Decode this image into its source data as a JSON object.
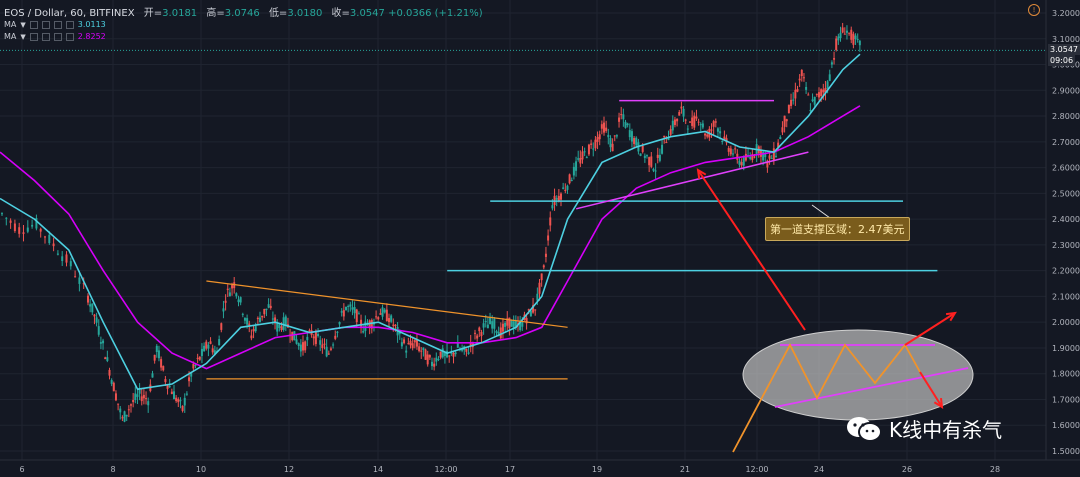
{
  "header": {
    "symbol": "EOS / Dollar, 60, BITFINEX",
    "open_label": "开=",
    "open": "3.0181",
    "high_label": "高=",
    "high": "3.0746",
    "low_label": "低=",
    "low": "3.0180",
    "close_label": "收=",
    "close": "3.0547",
    "change": "+0.0366 (+1.21%)",
    "ma1_label": "MA",
    "ma1_value": "3.0113",
    "ma2_label": "MA",
    "ma2_value": "2.8252"
  },
  "colors": {
    "background": "#141823",
    "up": "#26a69a",
    "down": "#ef5350",
    "ma_fast": "#4dd0e1",
    "ma_slow": "#d500f9",
    "triangle": "#f0932b",
    "support": "#4dd0e1",
    "channel": "#e040fb",
    "arrow": "#ff2020"
  },
  "annotation": {
    "text": "第一道支撑区域：2.47美元"
  },
  "watermark": {
    "text": "K线中有杀气"
  },
  "price_tags": {
    "current": "3.0547",
    "time": "09:06"
  },
  "chart_data": {
    "type": "line",
    "y_axis": {
      "ticks": [
        "3.2000",
        "3.1000",
        "3.0000",
        "2.9000",
        "2.8000",
        "2.7000",
        "2.6000",
        "2.5000",
        "2.4000",
        "2.3000",
        "2.2000",
        "2.1000",
        "2.0000",
        "1.9000",
        "1.8000",
        "1.7000",
        "1.6000",
        "1.5000"
      ],
      "ylim": [
        1.5,
        3.2
      ]
    },
    "x_axis": {
      "ticks": [
        "6",
        "8",
        "10",
        "12",
        "14",
        "12:00",
        "17",
        "19",
        "21",
        "12:00",
        "24",
        "26",
        "28"
      ]
    },
    "price_path": [
      [
        0,
        2.42
      ],
      [
        2,
        2.36
      ],
      [
        4,
        2.38
      ],
      [
        6,
        2.3
      ],
      [
        8,
        2.22
      ],
      [
        10,
        2.1
      ],
      [
        11,
        2.0
      ],
      [
        12,
        1.88
      ],
      [
        13,
        1.75
      ],
      [
        14,
        1.62
      ],
      [
        15,
        1.68
      ],
      [
        16,
        1.72
      ],
      [
        17,
        1.7
      ],
      [
        18,
        1.9
      ],
      [
        19,
        1.78
      ],
      [
        20,
        1.72
      ],
      [
        21,
        1.66
      ],
      [
        22,
        1.8
      ],
      [
        23,
        1.86
      ],
      [
        24,
        1.92
      ],
      [
        25,
        1.88
      ],
      [
        26,
        2.1
      ],
      [
        27,
        2.15
      ],
      [
        28,
        2.05
      ],
      [
        29,
        1.95
      ],
      [
        30,
        2.02
      ],
      [
        31,
        2.06
      ],
      [
        32,
        1.98
      ],
      [
        33,
        2.0
      ],
      [
        34,
        1.94
      ],
      [
        35,
        1.9
      ],
      [
        36,
        1.96
      ],
      [
        37,
        1.92
      ],
      [
        38,
        1.88
      ],
      [
        39,
        1.98
      ],
      [
        40,
        2.06
      ],
      [
        41,
        2.04
      ],
      [
        42,
        1.98
      ],
      [
        43,
        2.0
      ],
      [
        44,
        2.04
      ],
      [
        45,
        2.02
      ],
      [
        46,
        1.96
      ],
      [
        47,
        1.9
      ],
      [
        48,
        1.92
      ],
      [
        49,
        1.88
      ],
      [
        50,
        1.84
      ],
      [
        51,
        1.88
      ],
      [
        52,
        1.86
      ],
      [
        53,
        1.9
      ],
      [
        54,
        1.88
      ],
      [
        55,
        1.94
      ],
      [
        56,
        1.98
      ],
      [
        57,
        2.0
      ],
      [
        58,
        1.96
      ],
      [
        59,
        2.0
      ],
      [
        60,
        1.98
      ],
      [
        61,
        2.02
      ],
      [
        62,
        2.06
      ],
      [
        63,
        2.2
      ],
      [
        64,
        2.46
      ],
      [
        65,
        2.5
      ],
      [
        66,
        2.55
      ],
      [
        67,
        2.62
      ],
      [
        68,
        2.66
      ],
      [
        69,
        2.7
      ],
      [
        70,
        2.76
      ],
      [
        71,
        2.68
      ],
      [
        72,
        2.8
      ],
      [
        73,
        2.74
      ],
      [
        74,
        2.68
      ],
      [
        75,
        2.64
      ],
      [
        76,
        2.6
      ],
      [
        77,
        2.7
      ],
      [
        78,
        2.76
      ],
      [
        79,
        2.82
      ],
      [
        80,
        2.76
      ],
      [
        81,
        2.8
      ],
      [
        82,
        2.72
      ],
      [
        83,
        2.78
      ],
      [
        84,
        2.7
      ],
      [
        85,
        2.66
      ],
      [
        86,
        2.62
      ],
      [
        87,
        2.64
      ],
      [
        88,
        2.68
      ],
      [
        89,
        2.62
      ],
      [
        90,
        2.66
      ],
      [
        91,
        2.78
      ],
      [
        92,
        2.86
      ],
      [
        93,
        2.96
      ],
      [
        94,
        2.84
      ],
      [
        95,
        2.88
      ],
      [
        96,
        2.92
      ],
      [
        97,
        3.08
      ],
      [
        98,
        3.14
      ],
      [
        99,
        3.1
      ],
      [
        100,
        3.06
      ]
    ],
    "ma_fast": [
      [
        0,
        2.48
      ],
      [
        4,
        2.4
      ],
      [
        8,
        2.28
      ],
      [
        12,
        2.0
      ],
      [
        16,
        1.74
      ],
      [
        20,
        1.76
      ],
      [
        24,
        1.84
      ],
      [
        28,
        1.98
      ],
      [
        32,
        2.0
      ],
      [
        36,
        1.96
      ],
      [
        40,
        1.98
      ],
      [
        44,
        2.0
      ],
      [
        48,
        1.94
      ],
      [
        52,
        1.88
      ],
      [
        56,
        1.92
      ],
      [
        60,
        1.98
      ],
      [
        63,
        2.1
      ],
      [
        66,
        2.4
      ],
      [
        70,
        2.62
      ],
      [
        74,
        2.68
      ],
      [
        78,
        2.72
      ],
      [
        82,
        2.74
      ],
      [
        86,
        2.68
      ],
      [
        90,
        2.66
      ],
      [
        94,
        2.8
      ],
      [
        98,
        2.98
      ],
      [
        100,
        3.04
      ]
    ],
    "ma_slow": [
      [
        0,
        2.66
      ],
      [
        4,
        2.55
      ],
      [
        8,
        2.42
      ],
      [
        12,
        2.2
      ],
      [
        16,
        2.0
      ],
      [
        20,
        1.88
      ],
      [
        24,
        1.82
      ],
      [
        28,
        1.88
      ],
      [
        32,
        1.94
      ],
      [
        36,
        1.96
      ],
      [
        40,
        1.98
      ],
      [
        44,
        1.98
      ],
      [
        48,
        1.96
      ],
      [
        52,
        1.92
      ],
      [
        56,
        1.92
      ],
      [
        60,
        1.94
      ],
      [
        63,
        1.98
      ],
      [
        66,
        2.16
      ],
      [
        70,
        2.4
      ],
      [
        74,
        2.52
      ],
      [
        78,
        2.58
      ],
      [
        82,
        2.62
      ],
      [
        86,
        2.64
      ],
      [
        90,
        2.66
      ],
      [
        94,
        2.72
      ],
      [
        98,
        2.8
      ],
      [
        100,
        2.84
      ]
    ],
    "triangle_upper": [
      [
        24,
        2.16
      ],
      [
        66,
        1.98
      ]
    ],
    "triangle_lower": [
      [
        24,
        1.78
      ],
      [
        66,
        1.78
      ]
    ],
    "support_1": [
      [
        57,
        2.47
      ],
      [
        105,
        2.47
      ]
    ],
    "support_2": [
      [
        52,
        2.2
      ],
      [
        109,
        2.2
      ]
    ],
    "channel_top": [
      [
        72,
        2.86
      ],
      [
        90,
        2.86
      ]
    ],
    "channel_bottom": [
      [
        67,
        2.44
      ],
      [
        94,
        2.66
      ]
    ]
  }
}
